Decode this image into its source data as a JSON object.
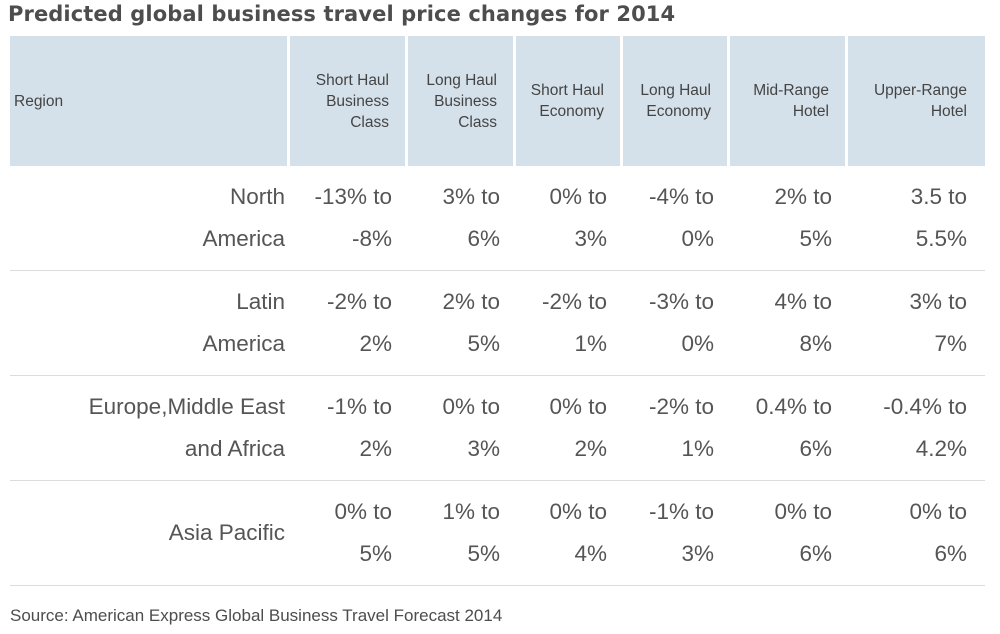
{
  "title": "Predicted global business travel price changes for 2014",
  "source": "Source: American Express Global Business Travel Forecast 2014",
  "chart_data": {
    "type": "table",
    "title": "Predicted global business travel price changes for 2014",
    "columns": [
      {
        "key": "region",
        "lines": [
          "Region"
        ]
      },
      {
        "key": "short_haul_business",
        "lines": [
          "Short Haul",
          "Business",
          "Class"
        ]
      },
      {
        "key": "long_haul_business",
        "lines": [
          "Long Haul",
          "Business",
          "Class"
        ]
      },
      {
        "key": "short_haul_economy",
        "lines": [
          "Short Haul",
          "Economy"
        ]
      },
      {
        "key": "long_haul_economy",
        "lines": [
          "Long Haul",
          "Economy"
        ]
      },
      {
        "key": "mid_range_hotel",
        "lines": [
          "Mid-Range",
          "Hotel"
        ]
      },
      {
        "key": "upper_range_hotel",
        "lines": [
          "Upper-Range",
          "Hotel"
        ]
      }
    ],
    "rows": [
      {
        "region": [
          "North",
          "America"
        ],
        "cells": [
          [
            "-13% to",
            "-8%"
          ],
          [
            "3% to",
            "6%"
          ],
          [
            "0% to",
            "3%"
          ],
          [
            "-4% to",
            "0%"
          ],
          [
            "2% to",
            "5%"
          ],
          [
            "3.5 to",
            "5.5%"
          ]
        ]
      },
      {
        "region": [
          "Latin",
          "America"
        ],
        "cells": [
          [
            "-2% to",
            "2%"
          ],
          [
            "2% to",
            "5%"
          ],
          [
            "-2% to",
            "1%"
          ],
          [
            "-3% to",
            "0%"
          ],
          [
            "4% to",
            "8%"
          ],
          [
            "3% to",
            "7%"
          ]
        ]
      },
      {
        "region": [
          "Europe,Middle East",
          "and Africa"
        ],
        "cells": [
          [
            "-1% to",
            "2%"
          ],
          [
            "0% to",
            "3%"
          ],
          [
            "0% to",
            "2%"
          ],
          [
            "-2% to",
            "1%"
          ],
          [
            "0.4% to",
            "6%"
          ],
          [
            "-0.4% to",
            "4.2%"
          ]
        ]
      },
      {
        "region": [
          "Asia Pacific"
        ],
        "cells": [
          [
            "0% to",
            "5%"
          ],
          [
            "1% to",
            "5%"
          ],
          [
            "0% to",
            "4%"
          ],
          [
            "-1% to",
            "3%"
          ],
          [
            "0% to",
            "6%"
          ],
          [
            "0% to",
            "6%"
          ]
        ]
      }
    ]
  }
}
